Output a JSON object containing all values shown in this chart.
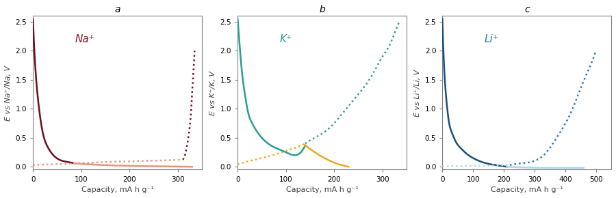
{
  "panels": [
    {
      "title": "a",
      "ylabel": "E vs Na⁺/Na, V",
      "xlabel": "Capacity, mA h g⁻¹",
      "ion_label": "Na⁺",
      "ion_color": "#8B1A2A",
      "xlim": [
        0,
        350
      ],
      "ylim": [
        -0.05,
        2.6
      ],
      "yticks": [
        0.0,
        0.5,
        1.0,
        1.5,
        2.0,
        2.5
      ],
      "xticks": [
        0,
        100,
        200,
        300
      ],
      "slope_color_charge": "#6B0F1E",
      "plateau_color_charge": "#E8927C",
      "slope_color_discharge": "#6B0F1E",
      "plateau_color_discharge": "#E8927C",
      "charge_slope_x": [
        0,
        5,
        10,
        15,
        20,
        30,
        40,
        55,
        70,
        85
      ],
      "charge_slope_y": [
        2.55,
        1.7,
        1.2,
        0.85,
        0.6,
        0.35,
        0.22,
        0.12,
        0.085,
        0.06
      ],
      "charge_plateau_x": [
        85,
        120,
        160,
        200,
        240,
        280,
        310,
        330
      ],
      "charge_plateau_y": [
        0.06,
        0.04,
        0.025,
        0.015,
        0.01,
        0.005,
        0.002,
        0.0
      ],
      "discharge_plateau_x": [
        0,
        30,
        70,
        120,
        180,
        230,
        270,
        300,
        310
      ],
      "discharge_plateau_y": [
        0.03,
        0.04,
        0.05,
        0.07,
        0.09,
        0.1,
        0.11,
        0.12,
        0.13
      ],
      "discharge_slope_x": [
        310,
        315,
        320,
        325,
        328,
        330,
        333,
        335
      ],
      "discharge_slope_y": [
        0.13,
        0.2,
        0.4,
        0.7,
        1.0,
        1.3,
        1.7,
        2.0
      ]
    },
    {
      "title": "b",
      "ylabel": "E vs K⁺/K, V",
      "xlabel": "Capacity, mA h g⁻¹",
      "ion_label": "K⁺",
      "ion_color": "#2A9D8F",
      "xlim": [
        0,
        350
      ],
      "ylim": [
        -0.05,
        2.6
      ],
      "yticks": [
        0.0,
        0.5,
        1.0,
        1.5,
        2.0,
        2.5
      ],
      "xticks": [
        0,
        100,
        200,
        300
      ],
      "slope_color_charge": "#2A9D8F",
      "plateau_color_charge": "#E9A820",
      "slope_color_discharge": "#2A9D8F",
      "plateau_color_discharge": "#E9A820",
      "charge_slope_x": [
        0,
        5,
        10,
        15,
        20,
        30,
        45,
        60,
        80,
        100,
        120,
        140
      ],
      "charge_slope_y": [
        2.55,
        2.0,
        1.55,
        1.25,
        1.0,
        0.75,
        0.55,
        0.42,
        0.32,
        0.25,
        0.2,
        0.37
      ],
      "charge_plateau_x": [
        140,
        160,
        180,
        200,
        210,
        220,
        230
      ],
      "charge_plateau_y": [
        0.37,
        0.25,
        0.15,
        0.07,
        0.04,
        0.02,
        0.0
      ],
      "discharge_plateau_x": [
        0,
        20,
        50,
        80,
        110,
        130,
        140
      ],
      "discharge_plateau_y": [
        0.04,
        0.09,
        0.15,
        0.22,
        0.3,
        0.36,
        0.4
      ],
      "discharge_slope_x": [
        140,
        160,
        180,
        200,
        220,
        250,
        280,
        300,
        315,
        325,
        335
      ],
      "discharge_slope_y": [
        0.4,
        0.5,
        0.6,
        0.75,
        0.95,
        1.25,
        1.6,
        1.9,
        2.1,
        2.3,
        2.5
      ]
    },
    {
      "title": "c",
      "ylabel": "E vs Li⁺/Li, V",
      "xlabel": "Capacity, mA h g⁻¹",
      "ion_label": "Li⁺",
      "ion_color": "#2E75B6",
      "xlim": [
        0,
        550
      ],
      "ylim": [
        -0.05,
        2.6
      ],
      "yticks": [
        0.0,
        0.5,
        1.0,
        1.5,
        2.0,
        2.5
      ],
      "xticks": [
        0,
        100,
        200,
        300,
        400,
        500
      ],
      "slope_color_charge": "#1A4F7A",
      "plateau_color_charge": "#A8D8EA",
      "slope_color_discharge": "#2E75B6",
      "plateau_color_discharge": "#A8D8EA",
      "charge_slope_x": [
        0,
        5,
        10,
        15,
        20,
        30,
        45,
        60,
        80,
        100,
        130,
        160,
        190,
        210
      ],
      "charge_slope_y": [
        2.55,
        1.8,
        1.35,
        1.05,
        0.82,
        0.6,
        0.42,
        0.32,
        0.22,
        0.15,
        0.08,
        0.04,
        0.015,
        0.0
      ],
      "charge_plateau_x": [
        210,
        250,
        290,
        330,
        370,
        400,
        430,
        460
      ],
      "charge_plateau_y": [
        0.0,
        -0.01,
        -0.015,
        -0.02,
        -0.02,
        -0.02,
        -0.02,
        -0.02
      ],
      "discharge_plateau_x": [
        0,
        50,
        100,
        150,
        200,
        220
      ],
      "discharge_plateau_y": [
        0.005,
        0.01,
        0.015,
        0.02,
        0.025,
        0.03
      ],
      "discharge_slope_x": [
        220,
        260,
        300,
        330,
        360,
        390,
        420,
        450,
        470,
        490,
        500
      ],
      "discharge_slope_y": [
        0.03,
        0.06,
        0.1,
        0.2,
        0.4,
        0.65,
        0.95,
        1.35,
        1.6,
        1.85,
        2.0
      ]
    }
  ]
}
